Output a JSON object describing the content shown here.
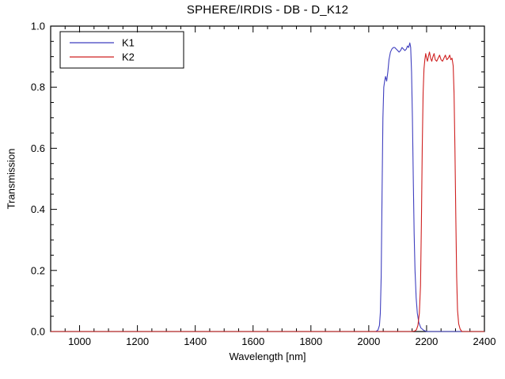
{
  "figure": {
    "background": "#ffffff",
    "frame_color": "#000000",
    "text_color": "#000000"
  },
  "chart_data": {
    "type": "line",
    "title": "SPHERE/IRDIS - DB - D_K12",
    "xlabel": "Wavelength [nm]",
    "ylabel": "Transmission",
    "xlim": [
      900,
      2400
    ],
    "ylim": [
      0.0,
      1.0
    ],
    "x_major_ticks": [
      1000,
      1200,
      1400,
      1600,
      1800,
      2000,
      2200,
      2400
    ],
    "x_tick_labels": [
      "1000",
      "1200",
      "1400",
      "1600",
      "1800",
      "2000",
      "2200",
      "2400"
    ],
    "x_minor_step": 50,
    "y_major_ticks": [
      0.0,
      0.2,
      0.4,
      0.6,
      0.8,
      1.0
    ],
    "y_tick_labels": [
      "0.0",
      "0.2",
      "0.4",
      "0.6",
      "0.8",
      "1.0"
    ],
    "y_minor_step": 0.05,
    "grid": false,
    "legend": {
      "position": "top-left",
      "entries": [
        "K1",
        "K2"
      ]
    },
    "series": [
      {
        "name": "K1",
        "color": "#3f3fbf",
        "points": [
          [
            900,
            0
          ],
          [
            1500,
            0
          ],
          [
            1900,
            0
          ],
          [
            2000,
            0
          ],
          [
            2025,
            0
          ],
          [
            2032,
            0.005
          ],
          [
            2037,
            0.02
          ],
          [
            2040,
            0.06
          ],
          [
            2043,
            0.18
          ],
          [
            2046,
            0.45
          ],
          [
            2049,
            0.7
          ],
          [
            2052,
            0.8
          ],
          [
            2055,
            0.82
          ],
          [
            2058,
            0.835
          ],
          [
            2062,
            0.82
          ],
          [
            2066,
            0.85
          ],
          [
            2070,
            0.89
          ],
          [
            2075,
            0.915
          ],
          [
            2080,
            0.925
          ],
          [
            2085,
            0.93
          ],
          [
            2090,
            0.93
          ],
          [
            2095,
            0.925
          ],
          [
            2100,
            0.92
          ],
          [
            2105,
            0.915
          ],
          [
            2110,
            0.92
          ],
          [
            2115,
            0.93
          ],
          [
            2120,
            0.925
          ],
          [
            2125,
            0.92
          ],
          [
            2130,
            0.925
          ],
          [
            2134,
            0.935
          ],
          [
            2138,
            0.93
          ],
          [
            2142,
            0.945
          ],
          [
            2145,
            0.93
          ],
          [
            2148,
            0.85
          ],
          [
            2151,
            0.7
          ],
          [
            2154,
            0.5
          ],
          [
            2157,
            0.32
          ],
          [
            2160,
            0.2
          ],
          [
            2164,
            0.11
          ],
          [
            2168,
            0.06
          ],
          [
            2173,
            0.03
          ],
          [
            2180,
            0.012
          ],
          [
            2190,
            0.004
          ],
          [
            2200,
            0
          ],
          [
            2300,
            0
          ],
          [
            2400,
            0
          ]
        ]
      },
      {
        "name": "K2",
        "color": "#cf2020",
        "points": [
          [
            900,
            0
          ],
          [
            1500,
            0
          ],
          [
            2000,
            0
          ],
          [
            2150,
            0
          ],
          [
            2160,
            0.002
          ],
          [
            2165,
            0.006
          ],
          [
            2170,
            0.02
          ],
          [
            2175,
            0.06
          ],
          [
            2179,
            0.15
          ],
          [
            2182,
            0.35
          ],
          [
            2185,
            0.6
          ],
          [
            2188,
            0.78
          ],
          [
            2191,
            0.86
          ],
          [
            2194,
            0.89
          ],
          [
            2197,
            0.91
          ],
          [
            2200,
            0.895
          ],
          [
            2203,
            0.885
          ],
          [
            2206,
            0.9
          ],
          [
            2210,
            0.915
          ],
          [
            2214,
            0.895
          ],
          [
            2218,
            0.885
          ],
          [
            2222,
            0.9
          ],
          [
            2226,
            0.91
          ],
          [
            2230,
            0.89
          ],
          [
            2235,
            0.885
          ],
          [
            2240,
            0.895
          ],
          [
            2245,
            0.905
          ],
          [
            2250,
            0.89
          ],
          [
            2255,
            0.885
          ],
          [
            2260,
            0.895
          ],
          [
            2265,
            0.905
          ],
          [
            2270,
            0.89
          ],
          [
            2275,
            0.895
          ],
          [
            2280,
            0.905
          ],
          [
            2284,
            0.89
          ],
          [
            2288,
            0.895
          ],
          [
            2292,
            0.87
          ],
          [
            2295,
            0.78
          ],
          [
            2298,
            0.6
          ],
          [
            2301,
            0.38
          ],
          [
            2304,
            0.18
          ],
          [
            2307,
            0.07
          ],
          [
            2311,
            0.025
          ],
          [
            2316,
            0.008
          ],
          [
            2322,
            0
          ],
          [
            2360,
            0
          ],
          [
            2400,
            0
          ]
        ]
      }
    ]
  }
}
